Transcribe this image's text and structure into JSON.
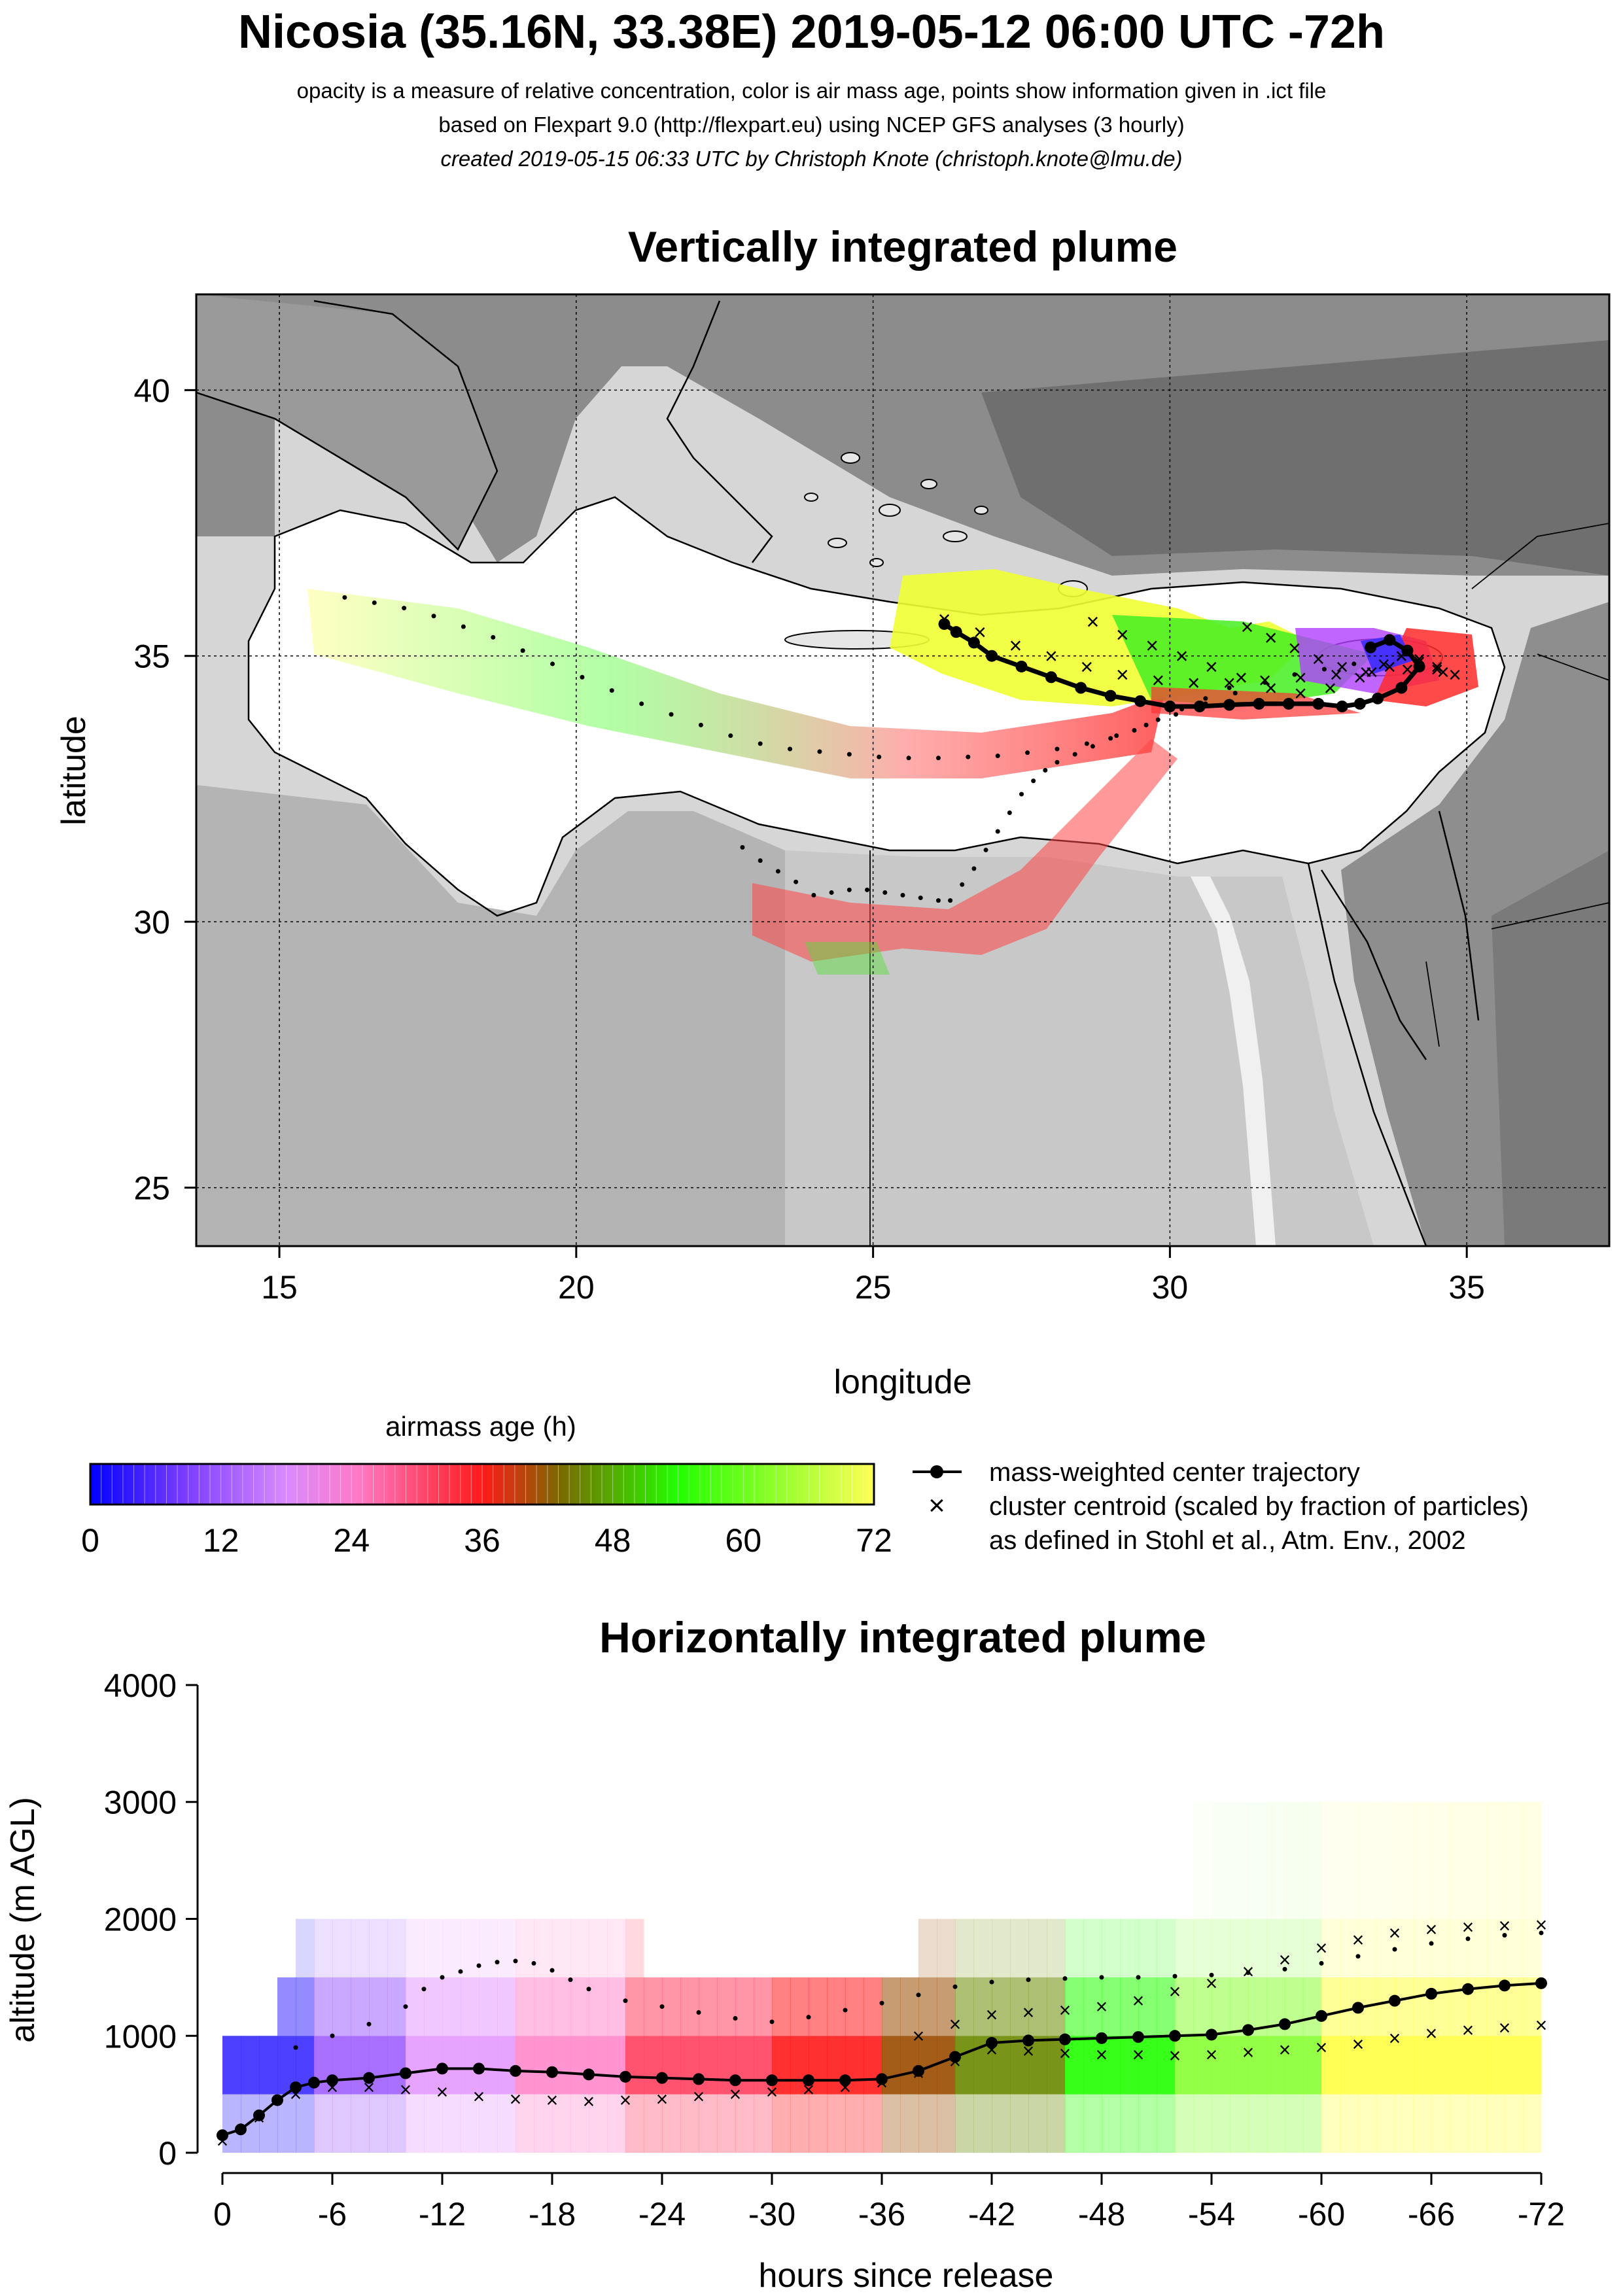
{
  "header": {
    "title": "Nicosia (35.16N, 33.38E) 2019-05-12 06:00 UTC -72h",
    "subtitle1": "opacity is a measure of relative concentration, color is air mass age, points show information given in .ict file",
    "subtitle2": "based on Flexpart 9.0 (http://flexpart.eu) using NCEP GFS analyses (3 hourly)",
    "subtitle3": "created 2019-05-15 06:33 UTC by Christoph Knote (christoph.knote@lmu.de)"
  },
  "colors": {
    "age_0": "#0000ff",
    "age_18": "#ff66cc",
    "age_36": "#ff0000",
    "age_42": "#8b5a00",
    "age_54": "#22ff00",
    "age_72": "#ffff44",
    "terrain_dark": "#707070",
    "terrain_light": "#d8d8d8",
    "sea": "#ffffff"
  },
  "colorbar": {
    "title": "airmass age (h)",
    "ticks": [
      "0",
      "12",
      "24",
      "36",
      "48",
      "60",
      "72"
    ],
    "range": [
      0,
      72
    ]
  },
  "legend": {
    "line1": "mass-weighted center trajectory",
    "line2": "cluster centroid (scaled by fraction of particles)",
    "line3": "as defined in Stohl et al., Atm. Env., 2002"
  },
  "chart_data": [
    {
      "type": "scatter",
      "title": "Vertically integrated plume",
      "xlabel": "longitude",
      "ylabel": "latitude",
      "xlim": [
        13.6,
        37.4
      ],
      "ylim": [
        23.9,
        41.8
      ],
      "xticks": [
        15,
        20,
        25,
        30,
        35
      ],
      "yticks": [
        25,
        30,
        35,
        40
      ],
      "xtick_labels": [
        "15",
        "20",
        "25",
        "30",
        "35"
      ],
      "ytick_labels": [
        "25",
        "30",
        "35",
        "40"
      ],
      "grid": true,
      "release_site": {
        "lon": 33.38,
        "lat": 35.16
      },
      "series": [
        {
          "role": "mass-weighted center trajectory",
          "lon": [
            33.38,
            33.7,
            34.0,
            34.2,
            33.9,
            33.5,
            33.2,
            32.9,
            32.5,
            32.0,
            31.5,
            31.0,
            30.5,
            30.0,
            29.5,
            29.0,
            28.5,
            28.0,
            27.5,
            27.0,
            26.7,
            26.4,
            26.2
          ],
          "lat": [
            35.16,
            35.3,
            35.1,
            34.8,
            34.4,
            34.2,
            34.1,
            34.05,
            34.1,
            34.1,
            34.1,
            34.08,
            34.05,
            34.05,
            34.15,
            34.25,
            34.4,
            34.6,
            34.8,
            35.0,
            35.25,
            35.45,
            35.6
          ]
        },
        {
          "role": "cluster centroid track 1",
          "lon": [
            26.2,
            26.8,
            27.4,
            28.0,
            28.6,
            29.2,
            29.8,
            30.4,
            31.0,
            31.6,
            32.2,
            32.8,
            33.4,
            34.0,
            34.6
          ],
          "lat": [
            35.7,
            35.45,
            35.2,
            35.0,
            34.8,
            34.65,
            34.55,
            34.5,
            34.5,
            34.55,
            34.6,
            34.65,
            34.7,
            34.75,
            34.7
          ]
        },
        {
          "role": "cluster centroid track 2",
          "lon": [
            28.7,
            29.2,
            29.7,
            30.2,
            30.7,
            31.2,
            31.7,
            32.2,
            32.7,
            33.2,
            33.7,
            34.2,
            34.5
          ],
          "lat": [
            35.65,
            35.4,
            35.2,
            35.0,
            34.8,
            34.6,
            34.4,
            34.3,
            34.4,
            34.6,
            34.8,
            34.9,
            34.8
          ]
        },
        {
          "role": "cluster centroid track 3",
          "lon": [
            31.3,
            31.7,
            32.1,
            32.5,
            32.9,
            33.3,
            33.6,
            33.9,
            34.2,
            34.5,
            34.8
          ],
          "lat": [
            35.55,
            35.35,
            35.15,
            34.95,
            34.8,
            34.7,
            34.85,
            35.0,
            34.95,
            34.75,
            34.65
          ]
        },
        {
          "role": "trajectory points west",
          "lon": [
            16.1,
            16.6,
            17.1,
            17.6,
            18.1,
            18.6,
            19.1,
            19.6,
            20.1,
            20.6,
            21.1,
            21.6,
            22.1,
            22.6,
            23.1,
            23.6,
            24.1,
            24.6,
            25.1,
            25.6,
            26.1,
            26.6,
            27.1,
            27.6,
            28.1,
            28.6,
            29.1,
            29.6,
            30.1,
            30.6,
            31.1,
            31.6,
            32.1,
            32.6,
            33.1
          ],
          "lat": [
            36.1,
            36.0,
            35.9,
            35.75,
            35.55,
            35.35,
            35.1,
            34.85,
            34.6,
            34.35,
            34.1,
            33.9,
            33.7,
            33.5,
            33.35,
            33.25,
            33.2,
            33.15,
            33.1,
            33.08,
            33.08,
            33.1,
            33.12,
            33.18,
            33.25,
            33.35,
            33.5,
            33.7,
            33.9,
            34.1,
            34.3,
            34.5,
            34.65,
            34.75,
            34.85
          ]
        },
        {
          "role": "trajectory points south",
          "lon": [
            22.8,
            23.1,
            23.4,
            23.7,
            24.0,
            24.3,
            24.6,
            24.9,
            25.2,
            25.5,
            25.8,
            26.1,
            26.3,
            26.5,
            26.7,
            26.9,
            27.1,
            27.3,
            27.5,
            27.7,
            27.9,
            28.1,
            28.4,
            28.7,
            29.0,
            29.4,
            29.8,
            30.2,
            30.6,
            31.0
          ],
          "lat": [
            31.4,
            31.15,
            30.95,
            30.75,
            30.5,
            30.55,
            30.6,
            30.6,
            30.55,
            30.5,
            30.45,
            30.4,
            30.4,
            30.7,
            31.0,
            31.35,
            31.7,
            32.05,
            32.4,
            32.65,
            32.85,
            33.0,
            33.15,
            33.3,
            33.45,
            33.6,
            33.8,
            34.0,
            34.2,
            34.4
          ]
        }
      ]
    },
    {
      "type": "line",
      "title": "Horizontally integrated plume",
      "xlabel": "hours since release",
      "ylabel": "altitude (m AGL)",
      "xlim": [
        1,
        -74
      ],
      "ylim": [
        -50,
        4050
      ],
      "xticks": [
        0,
        -6,
        -12,
        -18,
        -24,
        -30,
        -36,
        -42,
        -48,
        -54,
        -60,
        -66,
        -72
      ],
      "xtick_labels": [
        "0",
        "-6",
        "-12",
        "-18",
        "-24",
        "-30",
        "-36",
        "-42",
        "-48",
        "-54",
        "-60",
        "-66",
        "-72"
      ],
      "yticks": [
        0,
        1000,
        2000,
        3000,
        4000
      ],
      "ytick_labels": [
        "0",
        "1000",
        "2000",
        "3000",
        "4000"
      ],
      "grid": false,
      "series": [
        {
          "role": "mass-weighted center trajectory",
          "x": [
            0,
            -1,
            -2,
            -3,
            -4,
            -5,
            -6,
            -8,
            -10,
            -12,
            -14,
            -16,
            -18,
            -20,
            -22,
            -24,
            -26,
            -28,
            -30,
            -32,
            -34,
            -36,
            -38,
            -40,
            -42,
            -44,
            -46,
            -48,
            -50,
            -52,
            -54,
            -56,
            -58,
            -60,
            -62,
            -64,
            -66,
            -68,
            -70,
            -72
          ],
          "y": [
            150,
            200,
            320,
            450,
            560,
            600,
            620,
            640,
            680,
            720,
            720,
            700,
            690,
            670,
            650,
            640,
            630,
            620,
            620,
            620,
            620,
            630,
            700,
            820,
            940,
            960,
            970,
            980,
            990,
            1000,
            1010,
            1050,
            1100,
            1170,
            1240,
            1300,
            1360,
            1400,
            1430,
            1450
          ]
        },
        {
          "role": "cluster centroid low",
          "x": [
            0,
            -2,
            -4,
            -6,
            -8,
            -10,
            -12,
            -14,
            -16,
            -18,
            -20,
            -22,
            -24,
            -26,
            -28,
            -30,
            -32,
            -34,
            -36,
            -38,
            -40,
            -42,
            -44,
            -46,
            -48,
            -50,
            -52,
            -54,
            -56,
            -58,
            -60,
            -62,
            -64,
            -66,
            -68,
            -70,
            -72
          ],
          "y": [
            100,
            300,
            500,
            560,
            560,
            540,
            520,
            480,
            460,
            450,
            440,
            450,
            460,
            480,
            500,
            520,
            540,
            560,
            600,
            680,
            780,
            880,
            870,
            850,
            840,
            840,
            830,
            840,
            860,
            880,
            900,
            930,
            980,
            1020,
            1050,
            1070,
            1090
          ]
        },
        {
          "role": "cluster centroid high",
          "x": [
            -38,
            -40,
            -42,
            -44,
            -46,
            -48,
            -50,
            -52,
            -54,
            -56,
            -58,
            -60,
            -62,
            -64,
            -66,
            -68,
            -70,
            -72
          ],
          "y": [
            1000,
            1100,
            1180,
            1200,
            1220,
            1250,
            1300,
            1380,
            1450,
            1550,
            1650,
            1750,
            1820,
            1880,
            1910,
            1930,
            1940,
            1950
          ]
        },
        {
          "role": "trajectory points upper",
          "x": [
            -4,
            -6,
            -8,
            -10,
            -11,
            -12,
            -13,
            -14,
            -15,
            -16,
            -17,
            -18,
            -19,
            -20,
            -22,
            -24,
            -26,
            -28,
            -30,
            -32,
            -34,
            -36,
            -38,
            -40,
            -42,
            -44,
            -46,
            -48,
            -50,
            -52,
            -54,
            -56,
            -58,
            -60,
            -62,
            -64,
            -66,
            -68,
            -70,
            -72
          ],
          "y": [
            900,
            1000,
            1100,
            1250,
            1400,
            1500,
            1550,
            1600,
            1630,
            1640,
            1620,
            1560,
            1480,
            1400,
            1300,
            1250,
            1200,
            1150,
            1120,
            1160,
            1220,
            1280,
            1350,
            1420,
            1460,
            1480,
            1490,
            1500,
            1500,
            1510,
            1520,
            1540,
            1570,
            1620,
            1680,
            1740,
            1790,
            1830,
            1860,
            1880
          ]
        }
      ]
    }
  ]
}
